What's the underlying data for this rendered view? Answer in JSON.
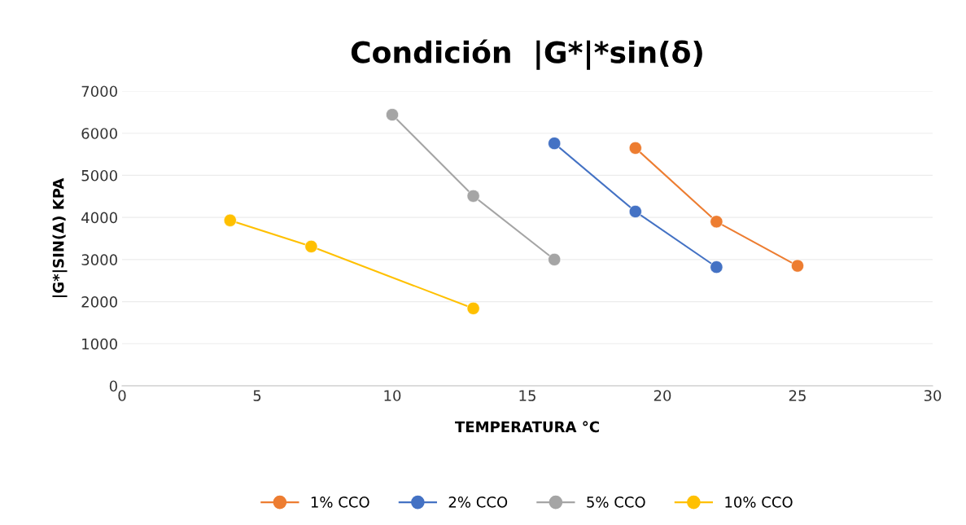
{
  "chart_data": {
    "type": "line",
    "title": "Condición  |G*|*sin(δ)",
    "xlabel": "TEMPERATURA °C",
    "ylabel": "|G*|SIN(Δ) KPA",
    "series": [
      {
        "name": "1% CCO",
        "color": "#ed7d31",
        "x": [
          19,
          22,
          25
        ],
        "values": [
          5650,
          3900,
          2850
        ]
      },
      {
        "name": "2% CCO",
        "color": "#4472c4",
        "x": [
          16,
          19,
          22
        ],
        "values": [
          5760,
          4140,
          2820
        ]
      },
      {
        "name": "5% CCO",
        "color": "#a5a5a5",
        "x": [
          10,
          13,
          16
        ],
        "values": [
          6440,
          4510,
          3000
        ]
      },
      {
        "name": "10% CCO",
        "color": "#ffc000",
        "x": [
          4,
          7,
          13
        ],
        "values": [
          3930,
          3310,
          1840
        ]
      }
    ],
    "xlim": [
      0,
      30
    ],
    "xticks": [
      0,
      5,
      10,
      15,
      20,
      25,
      30
    ],
    "ylim": [
      0,
      7000
    ],
    "yticks": [
      0,
      1000,
      2000,
      3000,
      4000,
      5000,
      6000,
      7000
    ],
    "grid": "y",
    "legend": "bottom",
    "marker": "circle",
    "line_style": "solid"
  }
}
